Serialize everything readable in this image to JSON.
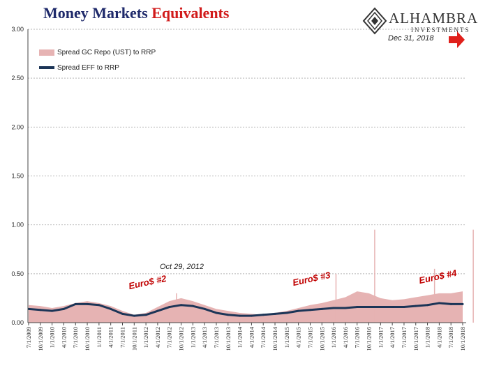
{
  "header": {
    "title_part1": "Money Markets",
    "title_part2": "Equivalents",
    "title_color1": "#1f2a6b",
    "title_color2": "#d11b1b"
  },
  "logo": {
    "name": "ALHAMBRA",
    "sub": "INVESTMENTS",
    "icon": "diamond-logo-icon"
  },
  "annotations": {
    "end_date": "Dec 31, 2018",
    "oct_date": "Oct 29, 2012",
    "euro2": "Euro$ #2",
    "euro3": "Euro$ #3",
    "euro4": "Euro$ #4",
    "arrow_icon": "right-arrow-icon",
    "annotation_color": "#c00000"
  },
  "chart_data": {
    "type": "area",
    "ylim": [
      0,
      3.0
    ],
    "yticks": [
      "3.00",
      "2.50",
      "2.00",
      "1.50",
      "1.00",
      "0.50",
      "0.00"
    ],
    "grid": "horizontal dashed",
    "legend_position": "top-left",
    "x_tick_labels": [
      "7/1/2009",
      "10/1/2009",
      "1/1/2010",
      "4/1/2010",
      "7/1/2010",
      "10/1/2010",
      "1/1/2011",
      "4/1/2011",
      "7/1/2011",
      "10/1/2011",
      "1/1/2012",
      "4/1/2012",
      "7/1/2012",
      "10/1/2012",
      "1/1/2013",
      "4/1/2013",
      "7/1/2013",
      "10/1/2013",
      "1/1/2014",
      "4/1/2014",
      "7/1/2014",
      "10/1/2014",
      "1/1/2015",
      "4/1/2015",
      "7/1/2015",
      "10/1/2015",
      "1/1/2016",
      "4/1/2016",
      "7/1/2016",
      "10/1/2016",
      "1/1/2017",
      "4/1/2017",
      "7/1/2017",
      "10/1/2017",
      "1/1/2018",
      "4/1/2018",
      "7/1/2018",
      "10/1/2018"
    ],
    "series": [
      {
        "name": "Spread GC Repo (UST) to RRP",
        "style": "area",
        "color": "#e6b3b3",
        "values": [
          0.18,
          0.17,
          0.15,
          0.17,
          0.2,
          0.22,
          0.2,
          0.17,
          0.12,
          0.08,
          0.1,
          0.16,
          0.22,
          0.25,
          0.22,
          0.18,
          0.14,
          0.12,
          0.1,
          0.09,
          0.08,
          0.1,
          0.12,
          0.15,
          0.18,
          0.2,
          0.23,
          0.26,
          0.32,
          0.3,
          0.25,
          0.23,
          0.24,
          0.26,
          0.28,
          0.3,
          0.3,
          0.32
        ]
      },
      {
        "name": "Spread EFF to RRP",
        "style": "line",
        "color": "#1c3557",
        "values": [
          0.14,
          0.13,
          0.12,
          0.14,
          0.19,
          0.19,
          0.18,
          0.14,
          0.09,
          0.07,
          0.08,
          0.12,
          0.16,
          0.18,
          0.17,
          0.14,
          0.1,
          0.08,
          0.07,
          0.07,
          0.08,
          0.09,
          0.1,
          0.12,
          0.13,
          0.14,
          0.15,
          0.15,
          0.16,
          0.16,
          0.16,
          0.16,
          0.16,
          0.17,
          0.18,
          0.2,
          0.19,
          0.19
        ]
      }
    ],
    "spikes": [
      {
        "index": 12.6,
        "value": 0.3
      },
      {
        "index": 26.2,
        "value": 0.5
      },
      {
        "index": 29.5,
        "value": 0.95
      },
      {
        "index": 34.6,
        "value": 0.55
      },
      {
        "index": 37.9,
        "value": 0.95
      }
    ]
  }
}
